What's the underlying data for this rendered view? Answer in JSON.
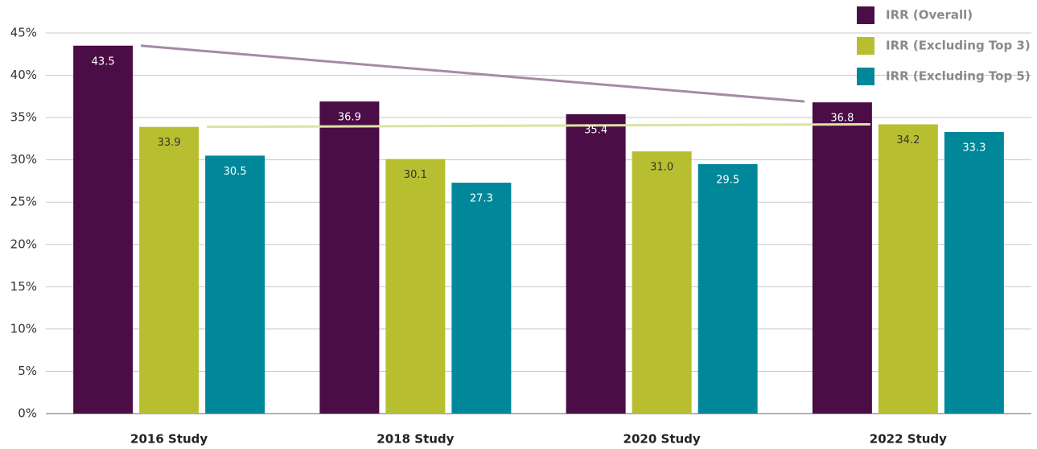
{
  "chart_data": {
    "type": "bar",
    "categories": [
      "2016 Study",
      "2018 Study",
      "2020 Study",
      "2022 Study"
    ],
    "series": [
      {
        "name": "IRR (Overall)",
        "color": "#4a0d45",
        "values": [
          43.5,
          36.9,
          35.4,
          36.8
        ],
        "value_labels": [
          "43.5",
          "36.9",
          "35.4",
          "36.8"
        ]
      },
      {
        "name": "IRR (Excluding Top 3)",
        "color": "#b7bf30",
        "values": [
          33.9,
          30.1,
          31.0,
          34.2
        ],
        "value_labels": [
          "33.9",
          "30.1",
          "31.0",
          "34.2"
        ]
      },
      {
        "name": "IRR (Excluding Top 5)",
        "color": "#00889a",
        "values": [
          30.5,
          27.3,
          29.5,
          33.3
        ],
        "value_labels": [
          "30.5",
          "27.3",
          "29.5",
          "33.3"
        ]
      }
    ],
    "trend_lines": [
      {
        "color": "#a68aa3",
        "values": [
          43.5,
          36.9
        ]
      },
      {
        "color": "#dde3a2",
        "values": [
          33.9,
          34.2
        ]
      }
    ],
    "ylim": [
      0,
      45
    ],
    "yticks": [
      {
        "value": 0,
        "label": "0%"
      },
      {
        "value": 5,
        "label": "5%"
      },
      {
        "value": 10,
        "label": "10%"
      },
      {
        "value": 15,
        "label": "15%"
      },
      {
        "value": 20,
        "label": "20%"
      },
      {
        "value": 25,
        "label": "25%"
      },
      {
        "value": 30,
        "label": "30%"
      },
      {
        "value": 35,
        "label": "35%"
      },
      {
        "value": 40,
        "label": "40%"
      },
      {
        "value": 45,
        "label": "45%"
      }
    ],
    "grid": true,
    "legend": "top-right"
  }
}
